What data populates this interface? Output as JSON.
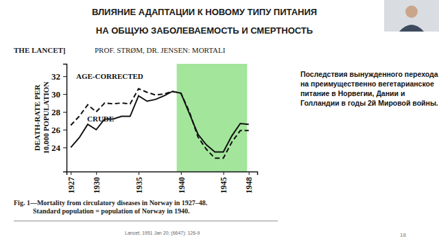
{
  "slide": {
    "title": [
      "ВЛИЯНИЕ АДАПТАЦИИ К НОВОМУ ТИПУ ПИТАНИЯ",
      "НА ОБЩУЮ ЗАБОЛЕВАЕМОСТЬ И СМЕРТНОСТЬ"
    ],
    "note": [
      "Последствия вынужденного перехода",
      "на преимущественно вегетарианское",
      "питание в Норвегии, Дании и",
      "Голландии в годы 2й Мировой войны."
    ],
    "citation": "Lancet; 1951 Jan 20; (6647): 126-9",
    "page": "18"
  },
  "chart_data": {
    "type": "line",
    "header": [
      "THE LANCET]",
      "PROF. STRØM, DR. JENSEN: MORTALI"
    ],
    "caption": [
      "Fig. 1—Mortality from circulatory diseases in Norway in 1927–48.",
      "Standard population = population of Norway in 1940."
    ],
    "y_label": [
      "DEATH-RATE PER",
      "10,000 POPULATION"
    ],
    "x": [
      1927,
      1928,
      1929,
      1930,
      1931,
      1932,
      1933,
      1934,
      1935,
      1936,
      1937,
      1938,
      1939,
      1940,
      1941,
      1942,
      1943,
      1944,
      1945,
      1946,
      1947,
      1948
    ],
    "series": [
      {
        "name": "AGE-CORRECTED",
        "color": "#111111",
        "line_style": "dashed",
        "values": [
          26.5,
          27.5,
          28.8,
          28.0,
          29.0,
          28.9,
          29.0,
          28.9,
          30.6,
          30.2,
          29.9,
          30.0,
          30.3,
          30.1,
          28.0,
          25.2,
          23.8,
          22.8,
          22.8,
          24.6,
          25.9,
          25.9
        ]
      },
      {
        "name": "CRUDE",
        "color": "#111111",
        "line_style": "solid",
        "values": [
          24.0,
          25.1,
          26.6,
          26.0,
          27.2,
          27.2,
          27.5,
          27.5,
          29.8,
          29.2,
          29.4,
          29.8,
          30.3,
          30.1,
          27.8,
          25.5,
          24.3,
          23.5,
          23.5,
          25.3,
          26.7,
          26.6
        ]
      }
    ],
    "highlight_x": [
      1939.5,
      1947.8
    ],
    "highlight_color": "#92e08a",
    "xlim": [
      1926.5,
      1949
    ],
    "xticks": [
      1927,
      1930,
      1935,
      1940,
      1945,
      1948
    ],
    "ylim": [
      21.3,
      33.4
    ],
    "yticks": [
      24,
      26,
      28,
      30,
      32
    ],
    "grid": false
  }
}
